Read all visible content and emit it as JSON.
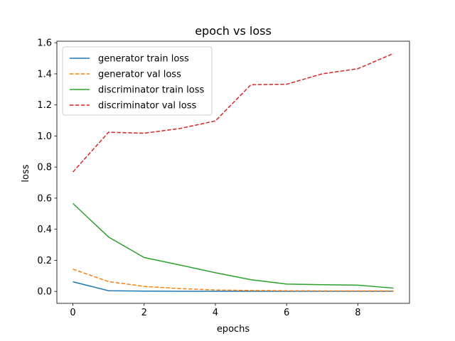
{
  "chart_data": {
    "type": "line",
    "title": "epoch vs loss",
    "xlabel": "epochs",
    "ylabel": "loss",
    "xlim": [
      -0.45,
      9.45
    ],
    "ylim": [
      -0.077,
      1.61
    ],
    "xticks": [
      "0",
      "2",
      "4",
      "6",
      "8"
    ],
    "yticks": [
      "0.0",
      "0.2",
      "0.4",
      "0.6",
      "0.8",
      "1.0",
      "1.2",
      "1.4",
      "1.6"
    ],
    "grid": false,
    "legend_position": "top-left",
    "x": [
      0,
      1,
      2,
      3,
      4,
      5,
      6,
      7,
      8,
      9
    ],
    "series": [
      {
        "name": "generator train loss",
        "color": "#1f77b4",
        "style": "solid",
        "values": [
          0.062,
          0.004,
          0.002,
          0.001,
          0.001,
          0.001,
          0.001,
          0.001,
          0.001,
          0.001
        ]
      },
      {
        "name": "generator val loss",
        "color": "#ff7f0e",
        "style": "dashed",
        "values": [
          0.143,
          0.063,
          0.032,
          0.018,
          0.009,
          0.006,
          0.004,
          0.003,
          0.003,
          0.003
        ]
      },
      {
        "name": "discriminator train loss",
        "color": "#2ca02c",
        "style": "solid",
        "values": [
          0.566,
          0.35,
          0.218,
          0.17,
          0.12,
          0.075,
          0.047,
          0.043,
          0.04,
          0.021
        ]
      },
      {
        "name": "discriminator val loss",
        "color": "#d62728",
        "style": "dashed",
        "values": [
          0.768,
          1.024,
          1.018,
          1.048,
          1.097,
          1.33,
          1.333,
          1.4,
          1.433,
          1.531
        ]
      }
    ]
  }
}
